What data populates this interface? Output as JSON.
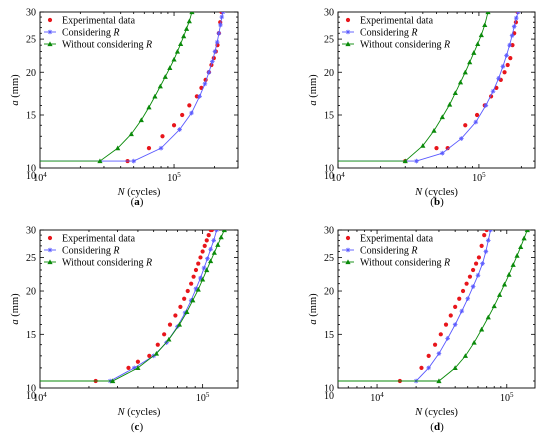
{
  "chart_data": [
    {
      "type": "line",
      "panel_label": "(a)",
      "xlabel": "N (cycles)",
      "ylabel": "a (mm)",
      "xscale": "log",
      "yscale": "log",
      "xlim": [
        10000,
        300000
      ],
      "ylim": [
        10.5,
        30
      ],
      "x_ticks": [
        "10^4",
        "10^5"
      ],
      "y_ticks": [
        "10",
        "15",
        "20",
        "25",
        "30"
      ],
      "legend_position": "top-left",
      "series": [
        {
          "name": "Experimental data",
          "style": "dots",
          "color": "#e8151b",
          "x": [
            45000,
            65000,
            82000,
            100000,
            115000,
            130000,
            148000,
            160000,
            172000,
            182000,
            190000,
            198000,
            205000,
            211000,
            216000,
            221000,
            226000
          ],
          "y": [
            11.0,
            12.0,
            13.0,
            14.0,
            15.0,
            16.0,
            17.0,
            18.0,
            19.0,
            20.0,
            21.0,
            22.0,
            23.0,
            24.0,
            26.0,
            28.0,
            30.0
          ]
        },
        {
          "name": "Considering R",
          "style": "line-star",
          "color": "#5a5aff",
          "x": [
            10000,
            50000,
            80000,
            110000,
            135000,
            155000,
            170000,
            182000,
            193000,
            202000,
            210000,
            216000,
            222000,
            227000,
            232000
          ],
          "y": [
            11.0,
            11.0,
            12.0,
            13.6,
            15.2,
            17.0,
            18.5,
            20.0,
            21.5,
            23.0,
            24.5,
            26.0,
            27.5,
            29.0,
            30.0
          ]
        },
        {
          "name": "Without considering R",
          "style": "line-triangle",
          "color": "#0a8a0a",
          "x": [
            10000,
            28000,
            38000,
            48000,
            57000,
            65000,
            72000,
            79000,
            86000,
            93000,
            100000,
            106000,
            112000,
            118000,
            124000,
            130000,
            136000
          ],
          "y": [
            11.0,
            11.0,
            12.0,
            13.2,
            14.5,
            15.8,
            17.0,
            18.2,
            19.4,
            20.6,
            21.8,
            23.0,
            24.2,
            25.5,
            26.8,
            28.2,
            30.0
          ]
        }
      ]
    },
    {
      "type": "line",
      "panel_label": "(b)",
      "xlabel": "N (cycles)",
      "ylabel": "a (mm)",
      "xscale": "log",
      "yscale": "log",
      "xlim": [
        10000,
        250000
      ],
      "ylim": [
        10.5,
        30
      ],
      "x_ticks": [
        "10^4",
        "10^5"
      ],
      "y_ticks": [
        "10",
        "15",
        "20",
        "25",
        "30"
      ],
      "legend_position": "top-left",
      "series": [
        {
          "name": "Experimental data",
          "style": "dots",
          "color": "#e8151b",
          "x": [
            30000,
            50000,
            60000,
            80000,
            97000,
            110000,
            122000,
            133000,
            143000,
            152000,
            160000,
            167000,
            173000,
            178000,
            183000,
            188000
          ],
          "y": [
            11.0,
            12.0,
            12.0,
            14.0,
            15.0,
            16.0,
            17.0,
            18.0,
            19.0,
            20.0,
            21.0,
            22.0,
            24.0,
            26.0,
            28.0,
            30.0
          ]
        },
        {
          "name": "Considering R",
          "style": "line-star",
          "color": "#5a5aff",
          "x": [
            10000,
            36000,
            55000,
            75000,
            95000,
            112000,
            126000,
            138000,
            148000,
            157000,
            165000,
            172000,
            178000,
            184000,
            190000
          ],
          "y": [
            11.0,
            11.0,
            11.6,
            12.8,
            14.3,
            16.0,
            17.6,
            19.2,
            20.8,
            22.4,
            24.0,
            25.6,
            27.2,
            28.8,
            30.0
          ]
        },
        {
          "name": "Without considering R",
          "style": "line-triangle",
          "color": "#0a8a0a",
          "x": [
            10000,
            30000,
            40000,
            48000,
            55000,
            62000,
            68000,
            74000,
            80000,
            86000,
            92000,
            98000,
            104000,
            110000,
            116000
          ],
          "y": [
            11.0,
            11.0,
            12.2,
            13.5,
            14.8,
            16.1,
            17.4,
            18.7,
            20.0,
            21.4,
            22.8,
            24.2,
            25.7,
            27.5,
            30.0
          ]
        }
      ]
    },
    {
      "type": "line",
      "panel_label": "(c)",
      "xlabel": "N (cycles)",
      "ylabel": "a (mm)",
      "xscale": "log",
      "yscale": "log",
      "xlim": [
        10000,
        165000
      ],
      "ylim": [
        10.5,
        30
      ],
      "x_ticks": [
        "10^4",
        "10^5"
      ],
      "y_ticks": [
        "10",
        "15",
        "20",
        "25",
        "30"
      ],
      "legend_position": "top-left",
      "series": [
        {
          "name": "Experimental data",
          "style": "dots",
          "color": "#e8151b",
          "x": [
            22000,
            35000,
            40000,
            47000,
            53000,
            58000,
            63000,
            68000,
            73000,
            77000,
            81000,
            85000,
            88000,
            91000,
            94000,
            97000,
            100000,
            103000,
            106000,
            109000,
            112000,
            114000
          ],
          "y": [
            11.0,
            12.0,
            12.5,
            13.0,
            14.0,
            15.0,
            16.0,
            17.0,
            18.0,
            19.0,
            20.0,
            21.0,
            22.0,
            23.0,
            24.0,
            25.0,
            26.0,
            27.0,
            28.0,
            29.0,
            30.0,
            30.0
          ]
        },
        {
          "name": "Considering R",
          "style": "line-star",
          "color": "#5a5aff",
          "x": [
            10000,
            27000,
            38000,
            50000,
            60000,
            70000,
            78000,
            85000,
            91000,
            97000,
            102000,
            107000,
            112000,
            117000,
            122000
          ],
          "y": [
            11.0,
            11.0,
            12.0,
            13.0,
            14.2,
            15.8,
            17.3,
            18.8,
            20.3,
            21.8,
            23.3,
            24.8,
            26.4,
            28.0,
            30.0
          ]
        },
        {
          "name": "Without considering R",
          "style": "line-triangle",
          "color": "#0a8a0a",
          "x": [
            10000,
            28000,
            40000,
            52000,
            62000,
            72000,
            80000,
            87000,
            94000,
            100000,
            106000,
            112000,
            118000,
            124000,
            130000,
            136000
          ],
          "y": [
            11.0,
            11.0,
            12.0,
            13.2,
            14.5,
            16.0,
            17.4,
            18.8,
            20.2,
            21.6,
            23.0,
            24.4,
            25.8,
            27.2,
            28.6,
            30.0
          ]
        }
      ]
    },
    {
      "type": "line",
      "panel_label": "(d)",
      "xlabel": "N (cycles)",
      "ylabel": "a (mm)",
      "xscale": "log",
      "yscale": "log",
      "xlim": [
        5000,
        165000
      ],
      "ylim": [
        10.5,
        30
      ],
      "x_ticks": [
        "10^4",
        "10^5"
      ],
      "y_ticks": [
        "10",
        "15",
        "20",
        "25",
        "30"
      ],
      "legend_position": "top-left",
      "series": [
        {
          "name": "Experimental data",
          "style": "dots",
          "color": "#e8151b",
          "x": [
            15000,
            22000,
            25000,
            28000,
            31000,
            34000,
            37000,
            40000,
            43000,
            46000,
            49000,
            52000,
            55000,
            58000,
            61000,
            64000,
            67000,
            70000
          ],
          "y": [
            11.0,
            12.0,
            13.0,
            14.0,
            15.0,
            16.0,
            17.0,
            18.0,
            19.0,
            20.0,
            21.0,
            22.0,
            23.0,
            24.0,
            25.0,
            27.0,
            29.0,
            30.0
          ]
        },
        {
          "name": "Considering R",
          "style": "line-star",
          "color": "#5a5aff",
          "x": [
            5000,
            20000,
            25000,
            30000,
            35000,
            40000,
            45000,
            50000,
            55000,
            60000,
            65000,
            69000,
            72000,
            75000
          ],
          "y": [
            11.0,
            11.0,
            12.0,
            13.2,
            14.6,
            16.0,
            17.5,
            19.0,
            20.6,
            22.2,
            24.0,
            26.0,
            28.0,
            30.0
          ]
        },
        {
          "name": "Without considering R",
          "style": "line-triangle",
          "color": "#0a8a0a",
          "x": [
            5000,
            30000,
            40000,
            48000,
            56000,
            64000,
            72000,
            80000,
            88000,
            96000,
            104000,
            112000,
            120000,
            128000,
            136000,
            144000
          ],
          "y": [
            11.0,
            11.0,
            12.0,
            13.0,
            14.2,
            15.5,
            16.8,
            18.1,
            19.5,
            20.9,
            22.3,
            23.8,
            25.3,
            26.8,
            28.4,
            30.0
          ]
        }
      ]
    }
  ]
}
